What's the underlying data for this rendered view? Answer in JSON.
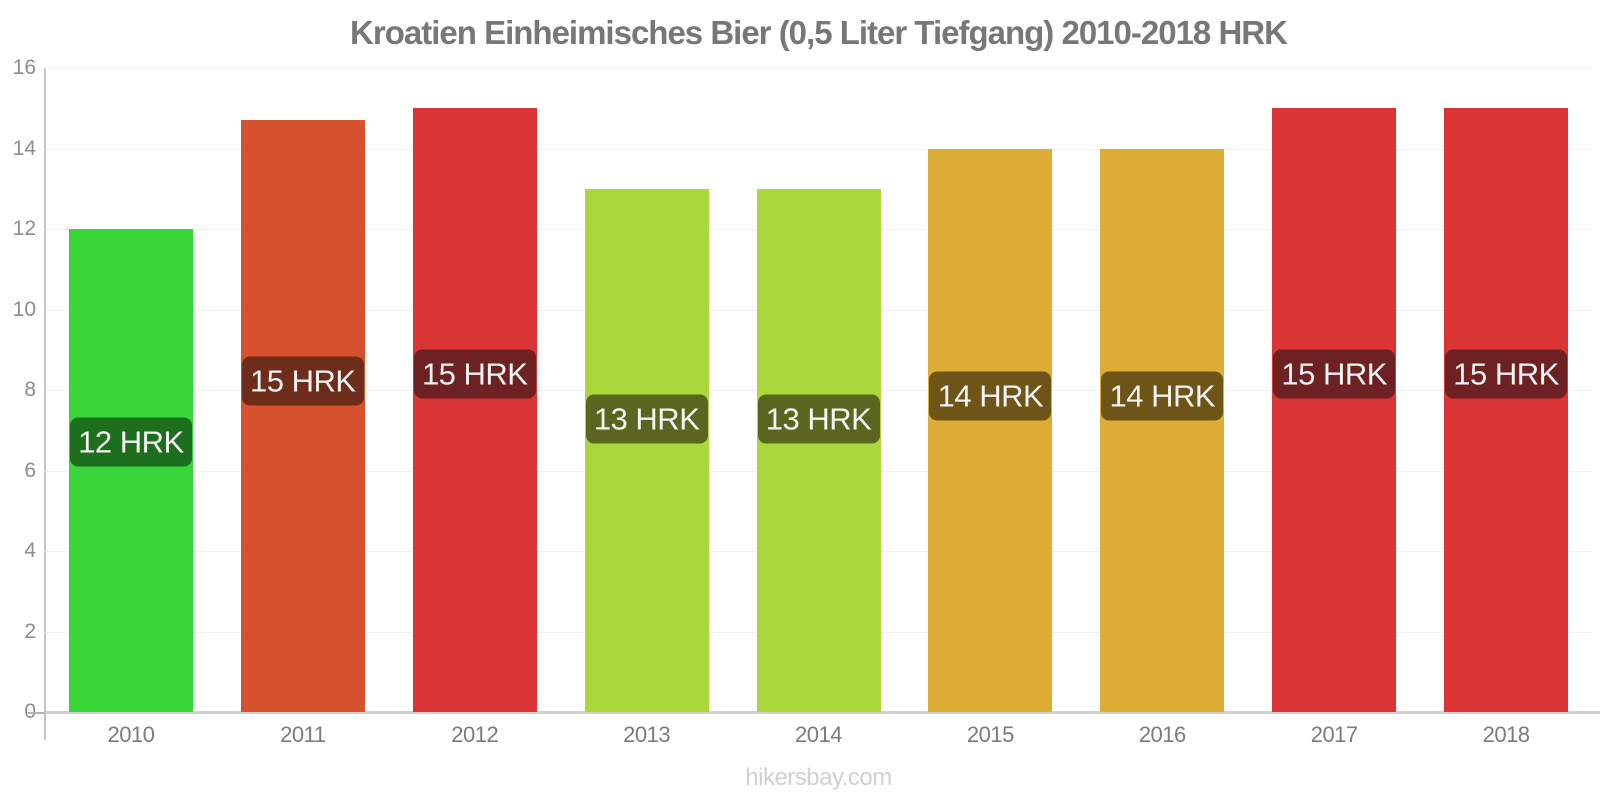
{
  "footer": {
    "text": "hikersbay.com"
  },
  "chart_data": {
    "type": "bar",
    "title": "Kroatien Einheimisches Bier (0,5 Liter Tiefgang) 2010-2018 HRK",
    "unit": "HRK",
    "categories": [
      "2010",
      "2011",
      "2012",
      "2013",
      "2014",
      "2015",
      "2016",
      "2017",
      "2018"
    ],
    "values": [
      12,
      14.7,
      15,
      13,
      13,
      14,
      14,
      15,
      15
    ],
    "bar_labels": [
      "12 HRK",
      "15 HRK",
      "15 HRK",
      "13 HRK",
      "13 HRK",
      "14 HRK",
      "14 HRK",
      "15 HRK",
      "15 HRK"
    ],
    "bar_colors": [
      "#38d639",
      "#d8512f",
      "#da3434",
      "#aad83a",
      "#aad83a",
      "#ddad36",
      "#ddad36",
      "#da3434",
      "#da3434"
    ],
    "label_bg_colors": [
      "#1d6e1d",
      "#6e2c1a",
      "#6e2122",
      "#5a661f",
      "#5a661f",
      "#6e5417",
      "#6e5417",
      "#6e2122",
      "#6e2122"
    ],
    "label_text_color": "#f4f4f4",
    "ylim": [
      0,
      16
    ],
    "yticks": [
      0,
      2,
      4,
      6,
      8,
      10,
      12,
      14,
      16
    ],
    "xlabel": "",
    "ylabel": "",
    "grid": true,
    "legend": false,
    "chrome_colors": {
      "title_text": "#76777a",
      "tick_text": "#8d8d8d",
      "x_tick_text": "#7b7b7b",
      "grid_line": "#f3f1ef",
      "baseline": "#cfcfcf",
      "y_axis_line": "#cbc3bd",
      "footer_text": "#d5cfcb",
      "background": "#ffffff"
    }
  }
}
